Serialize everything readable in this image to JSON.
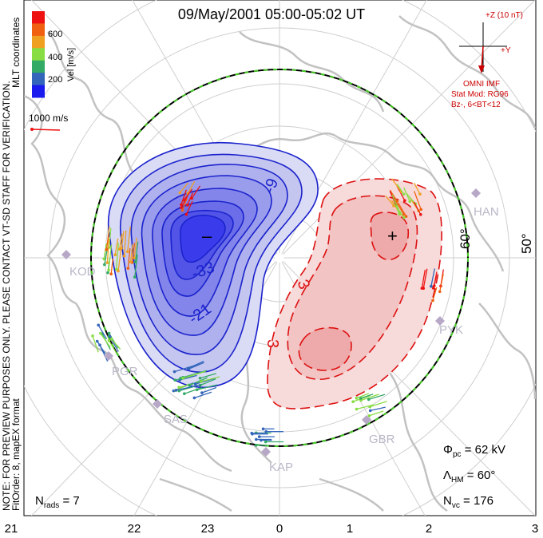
{
  "title": "09/May/2001 05:00-05:02 UT",
  "colorbar": {
    "unit_label": "Vel [m/s]",
    "ticks": [
      "600",
      "400",
      "200"
    ],
    "colors": [
      "#ee1111",
      "#f06010",
      "#f0a020",
      "#88dd44",
      "#33aa66",
      "#3366bb",
      "#1a1aee"
    ]
  },
  "coord_label": "MLT coordinates",
  "vector_scale_label": "1000 m/s",
  "preview_note": "NOTE: FOR PREVIEW PURPOSES ONLY. PLEASE CONTACT VT-SD STAFF FOR VERIFICATION.",
  "fit_note": "FitOrder: 8, mapEX format",
  "imf": {
    "z_label": "+Z (10 nT)",
    "y_label": "+Y",
    "source": "OMNI IMF",
    "stat_mod": "Stat Mod: RG96",
    "condition": "Bz-, 6<BT<12"
  },
  "latitude_labels": [
    "60°",
    "50°"
  ],
  "contour_labels": [
    "-9",
    "-33",
    "-21",
    "3",
    "3",
    "3"
  ],
  "potential_markers": {
    "min": "–",
    "max": "+"
  },
  "stations": [
    "HAN",
    "PYK",
    "GBR",
    "KAP",
    "SAS",
    "PGR",
    "KOD"
  ],
  "stats": {
    "phi_pc_label": "Φ",
    "phi_pc_sub": "pc",
    "phi_pc_value": " = 62 kV",
    "lambda_label": "Λ",
    "lambda_sub": "HM",
    "lambda_value": " = 60°",
    "nvc_label": "N",
    "nvc_sub": "vc",
    "nvc_value": " = 176",
    "nrads_label": "N",
    "nrads_sub": "rads",
    "nrads_value": " = 7"
  },
  "mlt_ticks": [
    "21",
    "22",
    "23",
    "0",
    "1",
    "2",
    "3"
  ],
  "colors": {
    "negative_contour": "#1a22cc",
    "positive_contour": "#dd1111",
    "boundary_dash": "#44cc22",
    "imf_text": "#cc0000",
    "land": "#c8c8c8"
  }
}
